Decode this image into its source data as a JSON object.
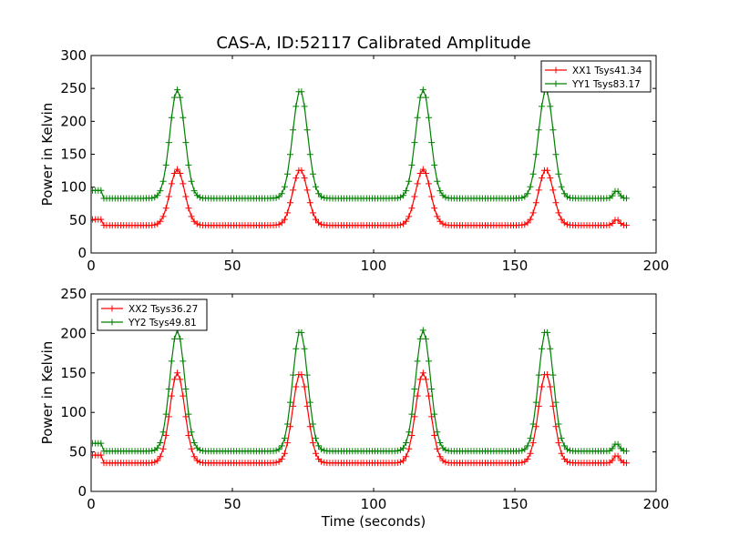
{
  "title": "CAS-A, ID:52117 Calibrated Amplitude",
  "colors": {
    "red": "#ff0000",
    "green": "#008000",
    "axis": "#000000"
  },
  "chart_data": [
    {
      "type": "line",
      "ylabel": "Power in Kelvin",
      "xlabel": "",
      "xlim": [
        0,
        200
      ],
      "ylim": [
        0,
        300
      ],
      "xticks": [
        0,
        50,
        100,
        150,
        200
      ],
      "yticks": [
        0,
        50,
        100,
        150,
        200,
        250,
        300
      ],
      "legend_position": "top-right",
      "marker": "plus",
      "series": [
        {
          "name": "XX1 Tsys41.34",
          "color": "#ff0000",
          "baseline": 42,
          "edge_level": 51,
          "peaks": [
            {
              "x": 30.5,
              "value": 127
            },
            {
              "x": 74,
              "value": 127
            },
            {
              "x": 117.5,
              "value": 127
            },
            {
              "x": 161,
              "value": 127
            }
          ],
          "tail_peak": {
            "x": 186,
            "value": 51
          }
        },
        {
          "name": "YY1 Tsys83.17",
          "color": "#008000",
          "baseline": 83,
          "edge_level": 95,
          "peaks": [
            {
              "x": 30.5,
              "value": 248
            },
            {
              "x": 74,
              "value": 248
            },
            {
              "x": 117.5,
              "value": 248
            },
            {
              "x": 161,
              "value": 248
            }
          ],
          "tail_peak": {
            "x": 186,
            "value": 95
          }
        }
      ]
    },
    {
      "type": "line",
      "ylabel": "Power in Kelvin",
      "xlabel": "Time (seconds)",
      "xlim": [
        0,
        200
      ],
      "ylim": [
        0,
        250
      ],
      "xticks": [
        0,
        50,
        100,
        150,
        200
      ],
      "yticks": [
        0,
        50,
        100,
        150,
        200,
        250
      ],
      "legend_position": "top-left",
      "marker": "plus",
      "series": [
        {
          "name": "XX2 Tsys36.27",
          "color": "#ff0000",
          "baseline": 36,
          "edge_level": 46,
          "peaks": [
            {
              "x": 30.5,
              "value": 150
            },
            {
              "x": 74,
              "value": 150
            },
            {
              "x": 117.5,
              "value": 150
            },
            {
              "x": 161,
              "value": 150
            }
          ],
          "tail_peak": {
            "x": 186,
            "value": 46
          }
        },
        {
          "name": "YY2 Tsys49.81",
          "color": "#008000",
          "baseline": 51,
          "edge_level": 61,
          "peaks": [
            {
              "x": 30.5,
              "value": 204
            },
            {
              "x": 74,
              "value": 204
            },
            {
              "x": 117.5,
              "value": 204
            },
            {
              "x": 161,
              "value": 204
            }
          ],
          "tail_peak": {
            "x": 186,
            "value": 61
          }
        }
      ]
    }
  ]
}
